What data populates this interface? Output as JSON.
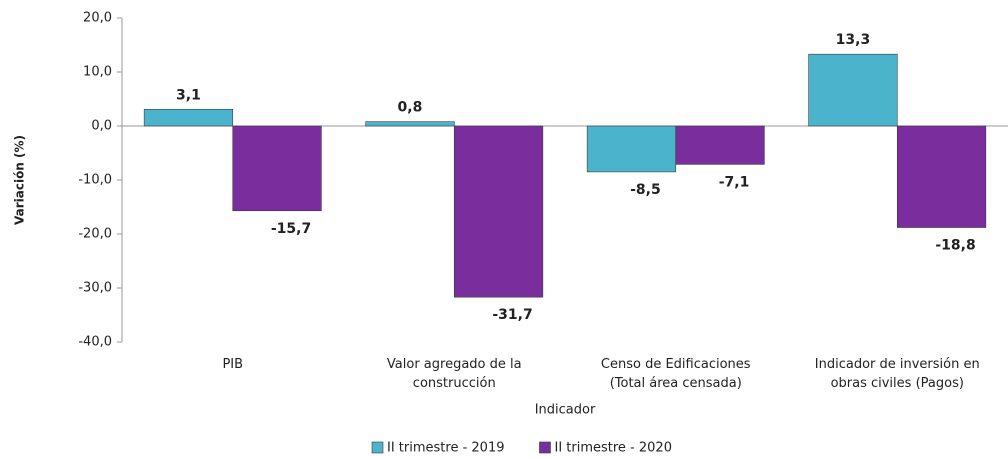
{
  "chart_data": {
    "type": "bar",
    "y_axis_label": "Variación  (%)",
    "x_axis_label": "Indicador",
    "categories": [
      "PIB",
      "Valor agregado de la\nconstrucción",
      "Censo de Edificaciones\n(Total área censada)",
      "Indicador de inversión en\nobras civiles (Pagos)"
    ],
    "series": [
      {
        "name": "II trimestre - 2019",
        "color": "#4bb4cc",
        "values": [
          3.1,
          0.8,
          -8.5,
          13.3
        ],
        "value_labels": [
          "3,1",
          "0,8",
          "-8,5",
          "13,3"
        ]
      },
      {
        "name": "II trimestre - 2020",
        "color": "#7a2e9e",
        "values": [
          -15.7,
          -31.7,
          -7.1,
          -18.8
        ],
        "value_labels": [
          "-15,7",
          "-31,7",
          "-7,1",
          "-18,8"
        ]
      }
    ],
    "ylim": [
      -40,
      20
    ],
    "yticks": [
      {
        "value": -40,
        "label": "-40,0"
      },
      {
        "value": -30,
        "label": "-30,0"
      },
      {
        "value": -20,
        "label": "-20,0"
      },
      {
        "value": -10,
        "label": "-10,0"
      },
      {
        "value": 0,
        "label": "0,0"
      },
      {
        "value": 10,
        "label": "10,0"
      },
      {
        "value": 20,
        "label": "20,0"
      }
    ],
    "legend": "bottom"
  }
}
